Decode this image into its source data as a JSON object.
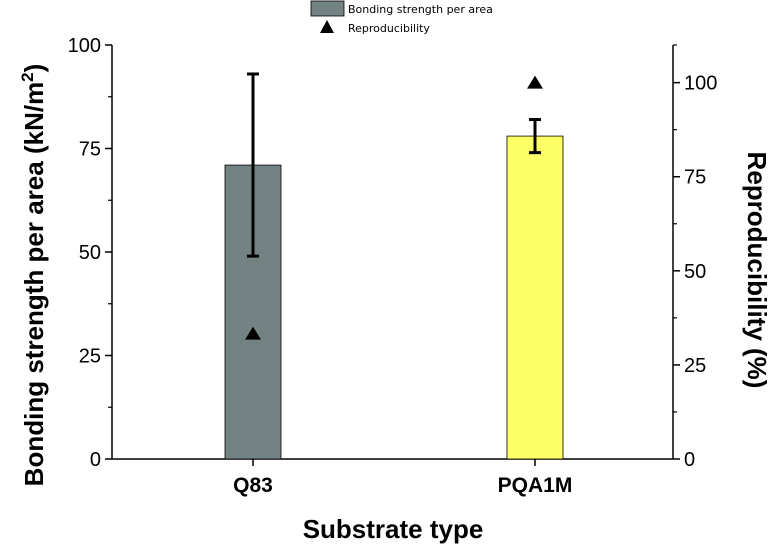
{
  "chart_data": {
    "type": "bar",
    "categories": [
      "Q83",
      "PQA1M"
    ],
    "series": [
      {
        "name": "Bonding strength per area",
        "axis": "left",
        "values": [
          71,
          78
        ],
        "error_low": [
          49,
          74
        ],
        "error_high": [
          93,
          82
        ],
        "colors": [
          "#738383",
          "#ffff66"
        ]
      },
      {
        "name": "Reproducibility",
        "axis": "right",
        "marker": "triangle",
        "values": [
          33.3,
          100
        ]
      }
    ],
    "xlabel": "Substrate type",
    "ylabel": "Bonding strength per area (kN/m",
    "ylabel_superscript": "2",
    "ylabel_suffix": ")",
    "y2label": "Reproducibility (%)",
    "ylim": [
      0,
      100
    ],
    "y2lim": [
      0,
      110
    ],
    "yticks": [
      0,
      25,
      50,
      75,
      100
    ],
    "y2ticks": [
      0,
      25,
      50,
      75,
      100
    ],
    "legend_position": "top-center"
  }
}
